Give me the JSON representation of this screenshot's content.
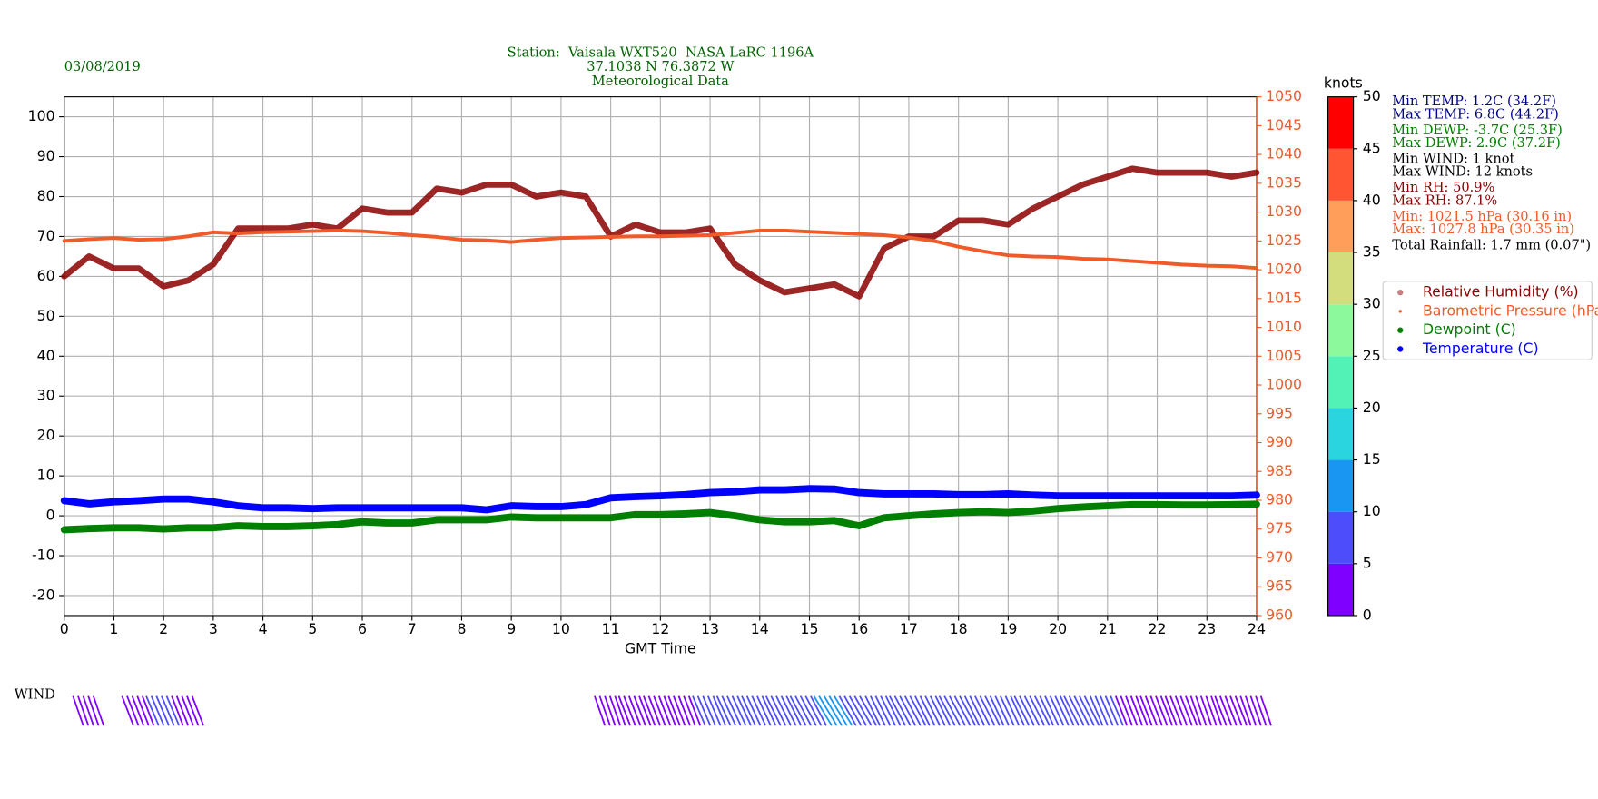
{
  "chart_data": {
    "type": "scatter",
    "date": "03/08/2019",
    "title": [
      "Station:  Vaisala WXT520  NASA LaRC 1196A",
      "37.1038 N 76.3872 W",
      "Meteorological Data"
    ],
    "title_color": "#006400",
    "xlabel": "GMT Time",
    "x": [
      0,
      0.5,
      1,
      1.5,
      2,
      2.5,
      3,
      3.5,
      4,
      4.5,
      5,
      5.5,
      6,
      6.5,
      7,
      7.5,
      8,
      8.5,
      9,
      9.5,
      10,
      10.5,
      11,
      11.5,
      12,
      12.5,
      13,
      13.5,
      14,
      14.5,
      15,
      15.5,
      16,
      16.5,
      17,
      17.5,
      18,
      18.5,
      19,
      19.5,
      20,
      20.5,
      21,
      21.5,
      22,
      22.5,
      23,
      23.5,
      24
    ],
    "xlim": [
      0,
      24
    ],
    "xticks": [
      0,
      1,
      2,
      3,
      4,
      5,
      6,
      7,
      8,
      9,
      10,
      11,
      12,
      13,
      14,
      15,
      16,
      17,
      18,
      19,
      20,
      21,
      22,
      23,
      24
    ],
    "ylim": [
      -25,
      105
    ],
    "yticks": [
      -20,
      -10,
      0,
      10,
      20,
      30,
      40,
      50,
      60,
      70,
      80,
      90,
      100
    ],
    "y2lim": [
      960,
      1050
    ],
    "y2ticks": [
      960,
      965,
      970,
      975,
      980,
      985,
      990,
      995,
      1000,
      1005,
      1010,
      1015,
      1020,
      1025,
      1030,
      1035,
      1040,
      1045,
      1050
    ],
    "y2_color": "#f05a28",
    "grid": true,
    "series": [
      {
        "name": "Relative Humidity (%)",
        "color": "#8b0000",
        "values": [
          60,
          65,
          62,
          62,
          57.5,
          59,
          63,
          72,
          72,
          72,
          73,
          72,
          77,
          76,
          76,
          82,
          81,
          83,
          83,
          80,
          81,
          80,
          70,
          73,
          71,
          71,
          72,
          63,
          59,
          56,
          57,
          58,
          55,
          67,
          70,
          70,
          74,
          74,
          73,
          77,
          80,
          83,
          85,
          87,
          86,
          86,
          86,
          85,
          86
        ]
      },
      {
        "name": "Barometric Pressure (hPa)",
        "color": "#f05a28",
        "axis": "y2",
        "values": [
          1025,
          1025.3,
          1025.5,
          1025.2,
          1025.3,
          1025.8,
          1026.5,
          1026.3,
          1026.5,
          1026.6,
          1026.7,
          1026.8,
          1026.7,
          1026.4,
          1026,
          1025.7,
          1025.2,
          1025.1,
          1024.8,
          1025.2,
          1025.5,
          1025.6,
          1025.7,
          1025.8,
          1025.8,
          1025.9,
          1026,
          1026.4,
          1026.8,
          1026.8,
          1026.6,
          1026.4,
          1026.2,
          1026,
          1025.6,
          1025,
          1024,
          1023.2,
          1022.5,
          1022.3,
          1022.2,
          1021.9,
          1021.8,
          1021.5,
          1021.2,
          1020.9,
          1020.7,
          1020.6,
          1020.3
        ]
      },
      {
        "name": "Dewpoint (C)",
        "color": "#008000",
        "values": [
          -3.5,
          -3.2,
          -3,
          -3,
          -3.3,
          -3,
          -3,
          -2.5,
          -2.7,
          -2.7,
          -2.5,
          -2.2,
          -1.5,
          -1.8,
          -1.8,
          -1,
          -1,
          -1,
          -0.3,
          -0.5,
          -0.5,
          -0.5,
          -0.5,
          0.3,
          0.3,
          0.5,
          0.8,
          0,
          -1,
          -1.5,
          -1.5,
          -1.2,
          -2.5,
          -0.5,
          0,
          0.5,
          0.8,
          1,
          0.8,
          1.2,
          1.8,
          2.2,
          2.5,
          2.8,
          2.8,
          2.7,
          2.7,
          2.8,
          2.9
        ]
      },
      {
        "name": "Temperature (C)",
        "color": "#0000ff",
        "values": [
          3.8,
          3,
          3.5,
          3.8,
          4.2,
          4.2,
          3.5,
          2.5,
          2,
          2,
          1.8,
          2,
          2,
          2,
          2,
          2,
          2,
          1.5,
          2.5,
          2.3,
          2.3,
          2.8,
          4.5,
          4.8,
          5,
          5.3,
          5.8,
          6,
          6.5,
          6.5,
          6.8,
          6.7,
          5.8,
          5.5,
          5.5,
          5.5,
          5.3,
          5.3,
          5.5,
          5.2,
          5,
          5,
          5,
          5,
          5,
          5,
          5,
          5,
          5.2
        ]
      }
    ],
    "stats": [
      {
        "text": "Min TEMP: 1.2C (34.2F)",
        "color": "#00008b"
      },
      {
        "text": "Max TEMP: 6.8C (44.2F)",
        "color": "#00008b"
      },
      {
        "text": "Min DEWP: -3.7C (25.3F)",
        "color": "#008000"
      },
      {
        "text": "Max DEWP: 2.9C (37.2F)",
        "color": "#008000"
      },
      {
        "text": "Min WIND: 1 knot",
        "color": "#000000"
      },
      {
        "text": "Max WIND: 12 knots",
        "color": "#000000"
      },
      {
        "text": "Min RH: 50.9%",
        "color": "#8b0000"
      },
      {
        "text": "Max RH: 87.1%",
        "color": "#8b0000"
      },
      {
        "text": "Min: 1021.5 hPa (30.16 in)",
        "color": "#f05a28"
      },
      {
        "text": "Max: 1027.8 hPa (30.35 in)",
        "color": "#f05a28"
      },
      {
        "text": "Total Rainfall: 1.7 mm (0.07\")",
        "color": "#000000"
      }
    ],
    "colorbar": {
      "label": "knots",
      "ticks": [
        0,
        5,
        10,
        15,
        20,
        25,
        30,
        35,
        40,
        45,
        50
      ],
      "colors": [
        "#8000ff",
        "#4d4dfc",
        "#1996f2",
        "#2ad5df",
        "#52f1b5",
        "#8cfa9c",
        "#d3dd7e",
        "#ff9d5a",
        "#ff5533",
        "#ff0000"
      ]
    },
    "wind": {
      "label": "WIND",
      "values": [
        null,
        3,
        null,
        4,
        5,
        4,
        null,
        null,
        null,
        null,
        null,
        null,
        null,
        null,
        null,
        null,
        null,
        null,
        null,
        null,
        null,
        null,
        3,
        4,
        4,
        4,
        5,
        6,
        6,
        7,
        8,
        10,
        9,
        7,
        8,
        7,
        8,
        7,
        6,
        7,
        6,
        7,
        5,
        4,
        4,
        4,
        3,
        4,
        3
      ]
    }
  }
}
